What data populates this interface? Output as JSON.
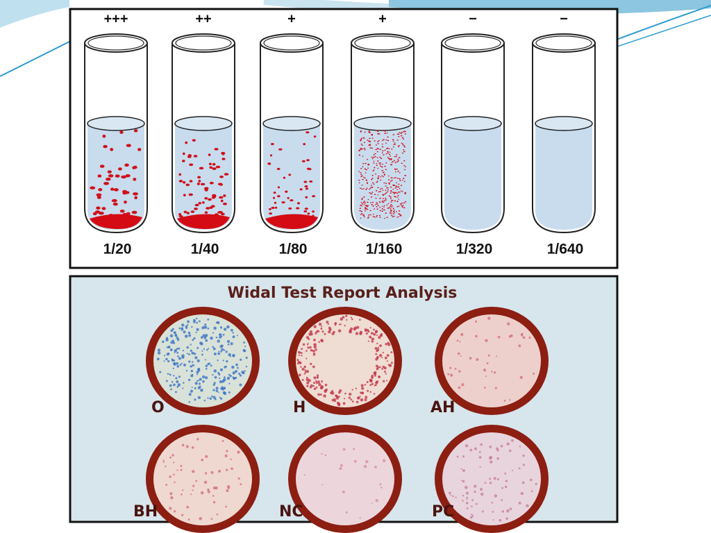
{
  "tubes": [
    {
      "result": "+++",
      "dilution": "1/20"
    },
    {
      "result": "++",
      "dilution": "1/40"
    },
    {
      "result": "+",
      "dilution": "1/80"
    },
    {
      "result": "+",
      "dilution": "1/160"
    },
    {
      "result": "−",
      "dilution": "1/320"
    },
    {
      "result": "−",
      "dilution": "1/640"
    }
  ],
  "report": {
    "title": "Widal Test Report Analysis",
    "wells": [
      {
        "label": "O"
      },
      {
        "label": "H"
      },
      {
        "label": "AH"
      },
      {
        "label": "BH"
      },
      {
        "label": "NC"
      },
      {
        "label": "PC"
      }
    ]
  }
}
